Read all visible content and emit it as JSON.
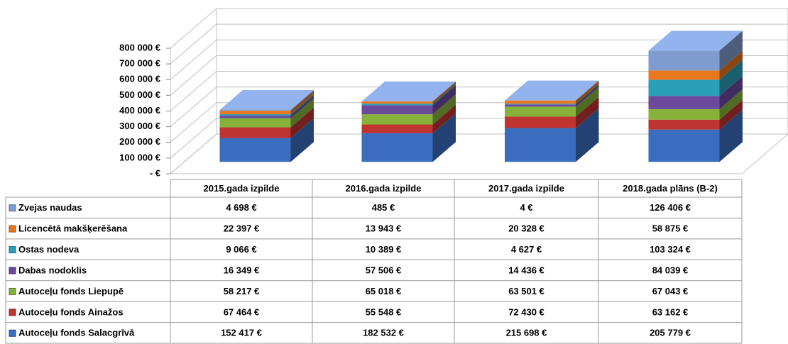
{
  "chart_data": {
    "type": "bar3d_stacked",
    "categories": [
      "2015.gada izpilde",
      "2016.gada izpilde",
      "2017.gada izpilde",
      "2018.gada plāns (B-2)"
    ],
    "series": [
      {
        "name": "Zvejas naudas",
        "color": "#7f9ccf",
        "values": [
          4698,
          485,
          4,
          126406
        ],
        "value_labels": [
          "4 698 €",
          "485 €",
          "4 €",
          "126 406 €"
        ]
      },
      {
        "name": "Licencētā makšķerēšana",
        "color": "#e8771e",
        "values": [
          22397,
          13943,
          20328,
          58875
        ],
        "value_labels": [
          "22 397 €",
          "13 943 €",
          "20 328 €",
          "58 875 €"
        ]
      },
      {
        "name": "Ostas nodeva",
        "color": "#2a9fb6",
        "values": [
          9066,
          10389,
          4627,
          103324
        ],
        "value_labels": [
          "9 066 €",
          "10 389 €",
          "4 627 €",
          "103 324 €"
        ]
      },
      {
        "name": "Dabas nodoklis",
        "color": "#6b4a9c",
        "values": [
          16349,
          57506,
          14436,
          84039
        ],
        "value_labels": [
          "16 349 €",
          "57 506 €",
          "14 436 €",
          "84 039 €"
        ]
      },
      {
        "name": "Autoceļu fonds Liepupē",
        "color": "#86b23a",
        "values": [
          58217,
          65018,
          63501,
          67043
        ],
        "value_labels": [
          "58 217 €",
          "65 018 €",
          "63 501 €",
          "67 043 €"
        ]
      },
      {
        "name": "Autoceļu fonds Ainažos",
        "color": "#bf3330",
        "values": [
          67464,
          55548,
          72430,
          63162
        ],
        "value_labels": [
          "67 464 €",
          "55 548 €",
          "72 430 €",
          "63 162 €"
        ]
      },
      {
        "name": "Autoceļu fonds Salacgrīvā",
        "color": "#3b6dbf",
        "values": [
          152417,
          182532,
          215698,
          205779
        ],
        "value_labels": [
          "152 417 €",
          "182 532 €",
          "215 698 €",
          "205 779 €"
        ]
      }
    ],
    "ylim": [
      0,
      800000
    ],
    "yticks": [
      {
        "value": 0,
        "label": "-  €"
      },
      {
        "value": 100000,
        "label": "100 000 €"
      },
      {
        "value": 200000,
        "label": "200 000 €"
      },
      {
        "value": 300000,
        "label": "300 000 €"
      },
      {
        "value": 400000,
        "label": "400 000 €"
      },
      {
        "value": 500000,
        "label": "500 000 €"
      },
      {
        "value": 600000,
        "label": "600 000 €"
      },
      {
        "value": 700000,
        "label": "700 000 €"
      },
      {
        "value": 800000,
        "label": "800 000 €"
      }
    ],
    "grid": true
  }
}
